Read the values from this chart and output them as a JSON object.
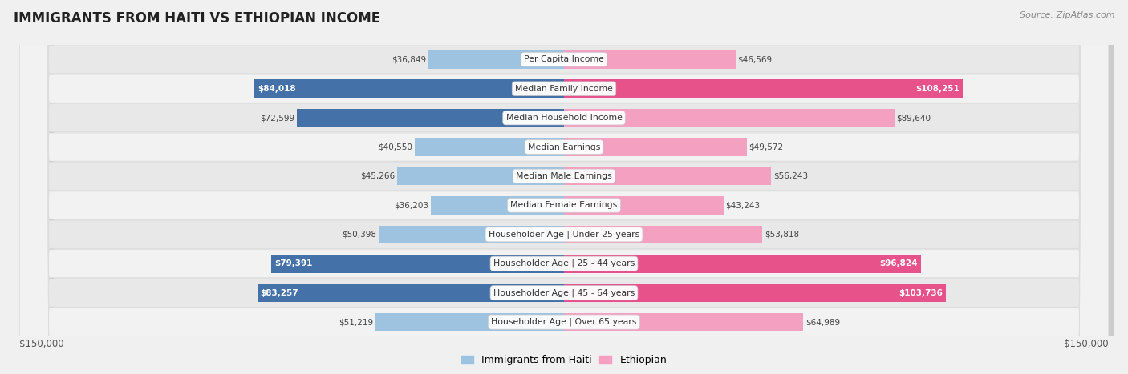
{
  "title": "IMMIGRANTS FROM HAITI VS ETHIOPIAN INCOME",
  "source": "Source: ZipAtlas.com",
  "categories": [
    "Per Capita Income",
    "Median Family Income",
    "Median Household Income",
    "Median Earnings",
    "Median Male Earnings",
    "Median Female Earnings",
    "Householder Age | Under 25 years",
    "Householder Age | 25 - 44 years",
    "Householder Age | 45 - 64 years",
    "Householder Age | Over 65 years"
  ],
  "haiti_values": [
    36849,
    84018,
    72599,
    40550,
    45266,
    36203,
    50398,
    79391,
    83257,
    51219
  ],
  "ethiopian_values": [
    46569,
    108251,
    89640,
    49572,
    56243,
    43243,
    53818,
    96824,
    103736,
    64989
  ],
  "haiti_labels": [
    "$36,849",
    "$84,018",
    "$72,599",
    "$40,550",
    "$45,266",
    "$36,203",
    "$50,398",
    "$79,391",
    "$83,257",
    "$51,219"
  ],
  "ethiopian_labels": [
    "$46,569",
    "$108,251",
    "$89,640",
    "$49,572",
    "$56,243",
    "$43,243",
    "$53,818",
    "$96,824",
    "$103,736",
    "$64,989"
  ],
  "haiti_color_light": "#9dc3e0",
  "haiti_color_dark": "#4472a8",
  "ethiopian_color_light": "#f4a0c0",
  "ethiopian_color_dark": "#e8528a",
  "dark_rows_haiti": [
    1,
    2,
    7,
    8
  ],
  "dark_rows_eth": [
    1,
    7,
    8
  ],
  "white_label_rows_haiti": [
    1,
    7,
    8
  ],
  "white_label_rows_eth": [
    1,
    7,
    8
  ],
  "max_value": 150000,
  "background_color": "#f0f0f0",
  "row_bg_even": "#e8e8e8",
  "row_bg_odd": "#f2f2f2",
  "legend_haiti": "Immigrants from Haiti",
  "legend_ethiopian": "Ethiopian",
  "xlabel_left": "$150,000",
  "xlabel_right": "$150,000"
}
